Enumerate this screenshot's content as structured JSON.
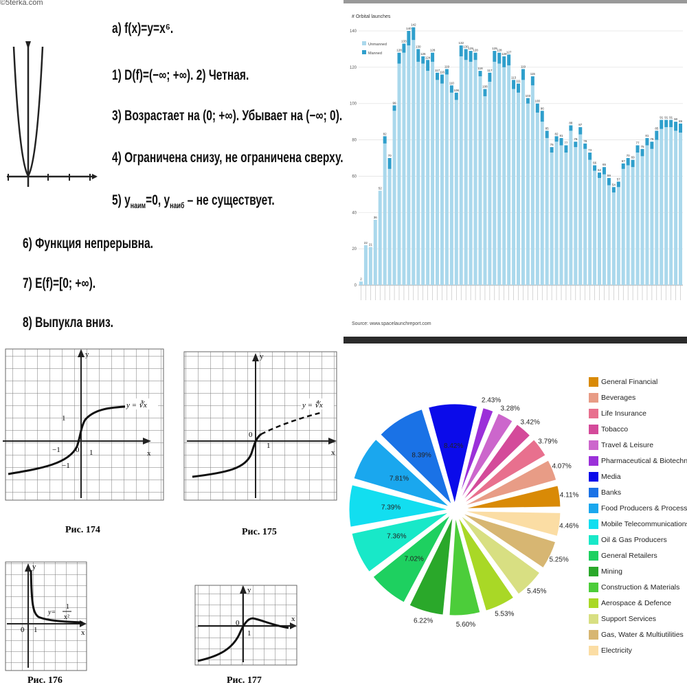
{
  "function_panel": {
    "watermark": "©5terka.com",
    "heading": "а) f(x)=y=x⁶.",
    "props": [
      "1) D(f)=(−∞; +∞). 2) Четная.",
      "3) Возрастает на (0; +∞). Убывает на (−∞; 0).",
      "4) Ограничена снизу, не ограничена сверху.",
      "6) Функция непрерывна.",
      "7) E(f)=[0; +∞).",
      "8) Выпукла вниз."
    ],
    "prop5": {
      "pre": "5) y",
      "sub1": "наим",
      "mid": "=0, y",
      "sub2": "наиб",
      "post": " – не существует."
    }
  },
  "textbook_figures": {
    "fig174": {
      "caption": "Рис. 174",
      "formula": "y = ∛x",
      "labels": {
        "y": "y",
        "x": "x",
        "one_y": "1",
        "neg_one_x": "−1",
        "zero": "0",
        "one_x": "1",
        "neg_one_y": "−1"
      }
    },
    "fig175": {
      "caption": "Рис. 175",
      "formula": "y = ∜x",
      "labels": {
        "y": "y",
        "x": "x",
        "zero": "0",
        "one_x": "1"
      }
    },
    "fig176": {
      "caption": "Рис. 176",
      "formula_lhs": "y=",
      "formula_num": "1",
      "formula_den": "x²",
      "labels": {
        "y": "y",
        "x": "x",
        "zero": "0",
        "one_x": "1"
      }
    },
    "fig177": {
      "caption": "Рис. 177",
      "labels": {
        "y": "y",
        "x": "x",
        "zero": "0",
        "one_x": "1"
      }
    }
  },
  "chart_data": [
    {
      "type": "bar",
      "title": "# Orbital launches",
      "source": "Source: www.spacelaunchreport.com",
      "legend": [
        "Unmanned",
        "Manned"
      ],
      "legend_position": "top-left",
      "ylim": [
        0,
        140
      ],
      "yticks": [
        0,
        20,
        40,
        60,
        80,
        100,
        120,
        140
      ],
      "stacked": true,
      "colors": {
        "Unmanned": "#aad8ec",
        "Manned": "#2f9fcc"
      },
      "series": [
        {
          "name": "Unmanned",
          "values": [
            2,
            22,
            21,
            36,
            52,
            78,
            64,
            96,
            122,
            128,
            132,
            135,
            123,
            122,
            118,
            123,
            113,
            111,
            116,
            106,
            102,
            126,
            124,
            123,
            124,
            115,
            104,
            112,
            123,
            122,
            120,
            121,
            108,
            106,
            113,
            100,
            110,
            95,
            90,
            81,
            73,
            79,
            77,
            73,
            85,
            76,
            83,
            75,
            69,
            63,
            59,
            61,
            55,
            51,
            54,
            64,
            66,
            65,
            73,
            71,
            77,
            75,
            80,
            86,
            87,
            87,
            85,
            84
          ]
        },
        {
          "name": "Manned",
          "values": [
            0,
            0,
            0,
            0,
            0,
            4,
            6,
            3,
            6,
            5,
            8,
            7,
            7,
            4,
            6,
            5,
            4,
            5,
            3,
            4,
            4,
            6,
            6,
            6,
            4,
            3,
            4,
            5,
            6,
            6,
            6,
            6,
            5,
            5,
            6,
            3,
            5,
            5,
            6,
            4,
            3,
            3,
            4,
            4,
            3,
            3,
            4,
            3,
            4,
            3,
            3,
            4,
            4,
            3,
            3,
            3,
            4,
            4,
            4,
            4,
            4,
            4,
            5,
            5,
            4,
            4,
            5,
            5
          ]
        }
      ],
      "data_labels": [
        2,
        22,
        21,
        36,
        52,
        82,
        70,
        99,
        128,
        133,
        140,
        142,
        130,
        126,
        124,
        128,
        117,
        116,
        119,
        110,
        106,
        132,
        130,
        129,
        128,
        118,
        108,
        117,
        129,
        128,
        126,
        127,
        113,
        111,
        119,
        103,
        115,
        100,
        96,
        85,
        76,
        82,
        81,
        77,
        88,
        79,
        87,
        78,
        73,
        66,
        62,
        65,
        59,
        54,
        57,
        67,
        70,
        69,
        77,
        75,
        81,
        79,
        85,
        91,
        91,
        91,
        90,
        89
      ]
    },
    {
      "type": "pie",
      "legend_position": "right",
      "categories": [
        "General Financial",
        "Beverages",
        "Life Insurance",
        "Tobacco",
        "Travel & Leisure",
        "Pharmaceutical & Biotechnology",
        "Media",
        "Banks",
        "Food Producers & Processors",
        "Mobile Telecommunications",
        "Oil & Gas Producers",
        "General Retailers",
        "Mining",
        "Construction & Materials",
        "Aerospace & Defence",
        "Support Services",
        "Gas, Water & Multiutilities",
        "Electricity"
      ],
      "values": [
        4.11,
        4.07,
        3.79,
        3.42,
        3.28,
        2.43,
        8.42,
        8.39,
        7.81,
        7.39,
        7.36,
        7.02,
        6.22,
        5.6,
        5.53,
        5.45,
        5.25,
        4.46
      ],
      "data_labels": [
        "4.11%",
        "4.07%",
        "3.79%",
        "3.42%",
        "3.28%",
        "2.43%",
        "8.42%",
        "8.39%",
        "7.81%",
        "7.39%",
        "7.36%",
        "7.02%",
        "6.22%",
        "5.60%",
        "5.53%",
        "5.45%",
        "5.25%",
        "4.46%"
      ],
      "colors": [
        "#d98a06",
        "#e89c86",
        "#e8708e",
        "#d44a9a",
        "#cc66cc",
        "#9b30d9",
        "#0b0bea",
        "#1a72e6",
        "#1aa7ee",
        "#12def0",
        "#18e8c8",
        "#1ed060",
        "#2aa82a",
        "#4ccd3a",
        "#a9d826",
        "#d8df82",
        "#d7b672",
        "#fbdda4"
      ]
    }
  ]
}
